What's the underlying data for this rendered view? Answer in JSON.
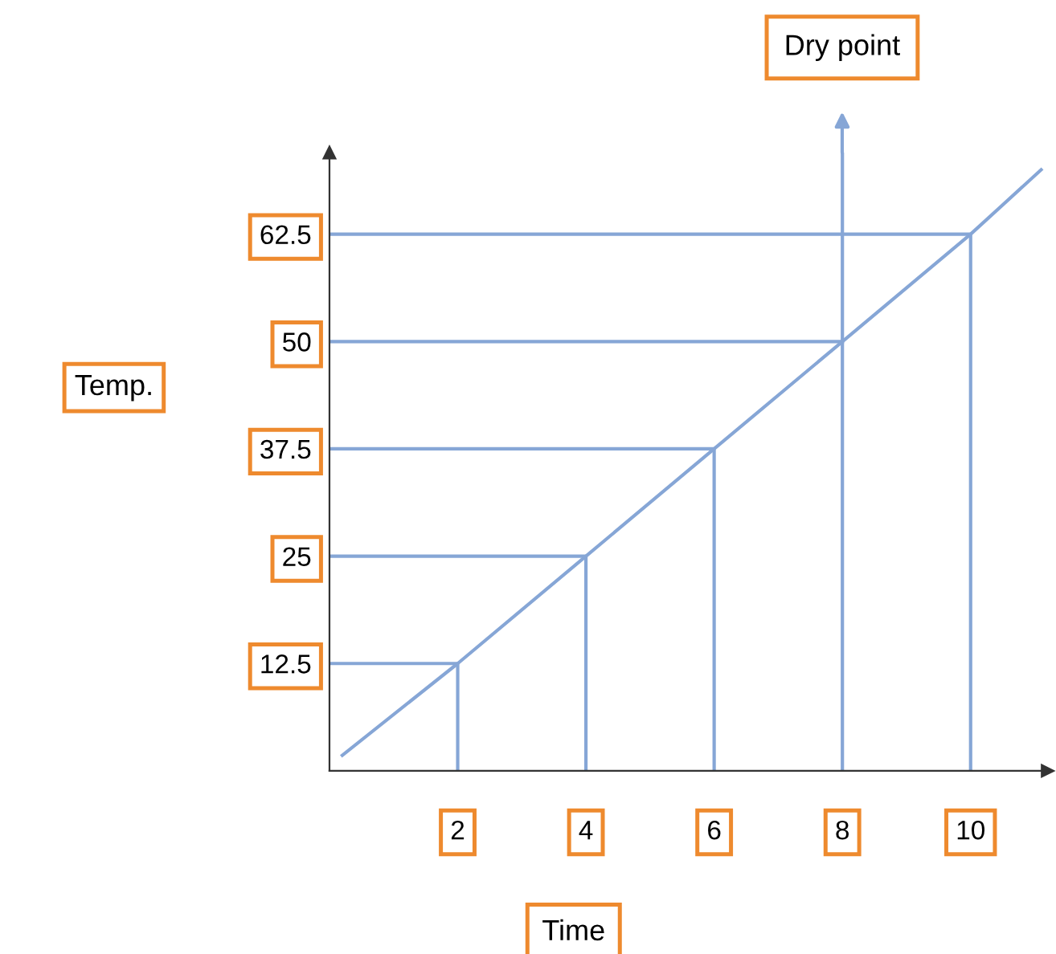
{
  "chart_data": {
    "type": "line",
    "xlabel": "Time",
    "ylabel": "Temp.",
    "series": [
      {
        "color": "#86a6d6",
        "x": [
          0.2,
          2,
          4,
          6,
          8,
          10,
          11.1
        ],
        "values": [
          1.8,
          12.5,
          25,
          37.5,
          50,
          62.5,
          70
        ]
      },
      {
        "color": "#86a6d6",
        "x": [
          0,
          2,
          2
        ],
        "values": [
          12.5,
          12.5,
          0
        ]
      },
      {
        "color": "#86a6d6",
        "x": [
          0,
          4,
          4
        ],
        "values": [
          25,
          25,
          0
        ]
      },
      {
        "color": "#86a6d6",
        "x": [
          0,
          6,
          6
        ],
        "values": [
          37.5,
          37.5,
          0
        ]
      },
      {
        "color": "#86a6d6",
        "x": [
          0,
          8
        ],
        "values": [
          50,
          50
        ]
      },
      {
        "color": "#86a6d6",
        "x": [
          8,
          8
        ],
        "values": [
          0,
          72
        ]
      },
      {
        "color": "#86a6d6",
        "x": [
          0,
          10,
          10
        ],
        "values": [
          62.5,
          62.5,
          0
        ]
      }
    ],
    "annotations": [
      "Dry point"
    ],
    "xlim": [
      0,
      11.2
    ],
    "ylim": [
      0,
      72
    ],
    "xticks": [
      2,
      4,
      6,
      8,
      10
    ],
    "yticks": [
      12.5,
      25,
      37.5,
      50,
      62.5
    ],
    "grid": false,
    "legend": false,
    "marker": "none",
    "line_style": "solid"
  }
}
